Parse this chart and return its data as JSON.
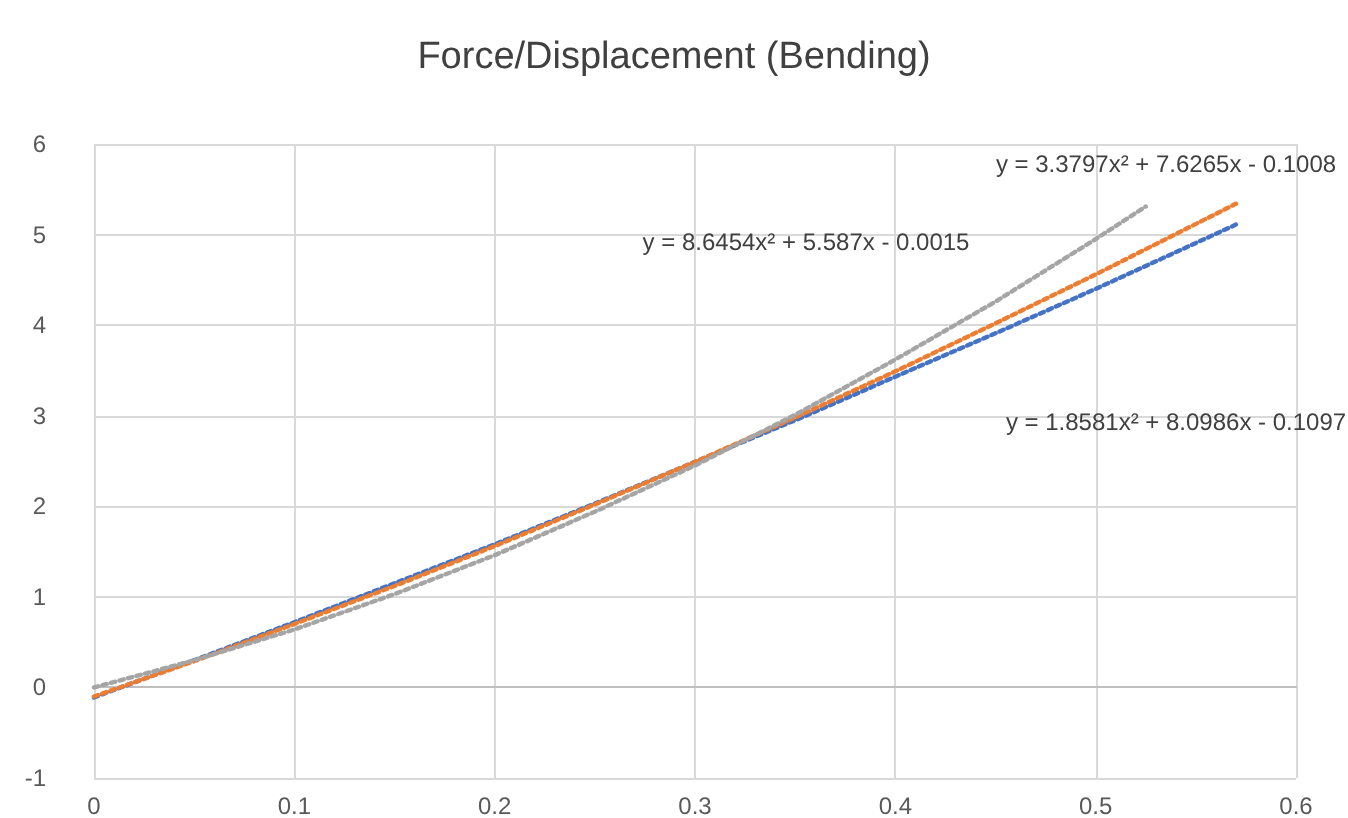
{
  "chart_data": {
    "type": "line",
    "title": "Force/Displacement (Bending)",
    "x": [
      0,
      0.05,
      0.1,
      0.15,
      0.2,
      0.25,
      0.3,
      0.35,
      0.4,
      0.45,
      0.5,
      0.57
    ],
    "series": [
      {
        "color": "#4472c4",
        "values": [
          -0.11,
          0.3,
          0.72,
          1.15,
          1.58,
          2.03,
          2.49,
          2.95,
          3.43,
          3.91,
          4.4,
          5.11
        ]
      },
      {
        "color": "#ed7d31",
        "values": [
          -0.1,
          0.29,
          0.7,
          1.12,
          1.56,
          2.02,
          2.49,
          2.98,
          3.49,
          4.02,
          4.56,
          5.34
        ]
      },
      {
        "color": "#a5a5a5",
        "x": [
          0,
          0.05,
          0.1,
          0.15,
          0.2,
          0.25,
          0.3,
          0.35,
          0.4,
          0.45,
          0.5,
          0.525
        ],
        "values": [
          0.0,
          0.3,
          0.64,
          1.03,
          1.46,
          1.94,
          2.45,
          3.01,
          3.62,
          4.26,
          4.95,
          5.31
        ]
      }
    ],
    "xlim": [
      0,
      0.6
    ],
    "xticks": [
      0,
      0.1,
      0.2,
      0.3,
      0.4,
      0.5,
      0.6
    ],
    "ylim": [
      -1,
      6
    ],
    "yticks": [
      -1,
      0,
      1,
      2,
      3,
      4,
      5,
      6
    ],
    "grid": true,
    "marker": "none",
    "line_style": "dotted",
    "annotations": [
      "y = 3.3797x² + 7.6265x - 0.1008",
      "y = 8.6454x² + 5.587x - 0.0015",
      "y = 1.8581x² + 8.0986x - 0.1097"
    ]
  }
}
